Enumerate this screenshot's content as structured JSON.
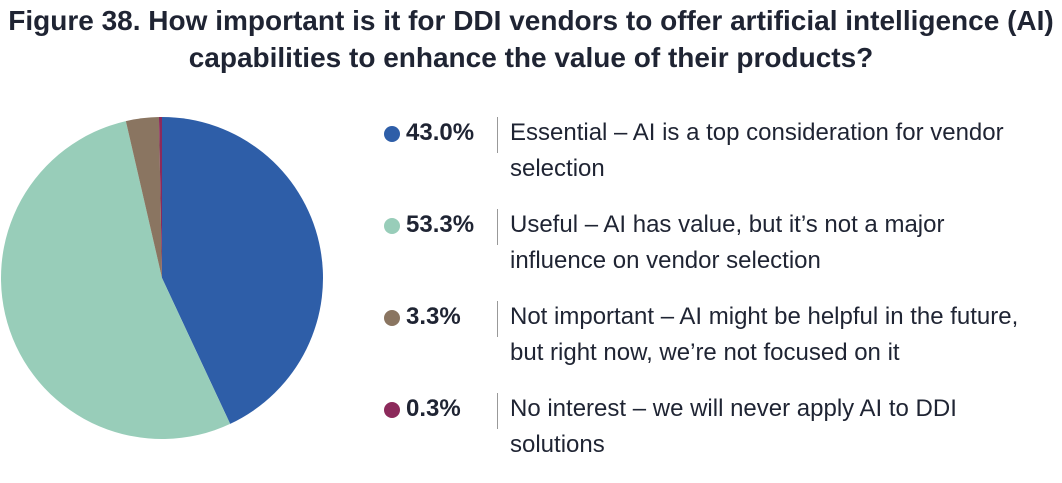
{
  "chart_data": {
    "type": "pie",
    "title": "Figure 38. How important is it for DDI vendors to offer artificial intelligence (AI) capabilities to enhance the value of their products?",
    "categories": [
      "Essential – AI is a top consideration for vendor selection",
      "Useful – AI has value, but it’s not a major influence on vendor selection",
      "Not important – AI might be helpful in the future, but right now, we’re not focused on it",
      "No interest – we will never apply AI to DDI solutions"
    ],
    "values": [
      43.0,
      53.3,
      3.3,
      0.3
    ],
    "value_labels": [
      "43.0%",
      "53.3%",
      "3.3%",
      "0.3%"
    ],
    "colors": [
      "#2e5ea8",
      "#98cdb9",
      "#8a7561",
      "#8c2a5b"
    ]
  }
}
